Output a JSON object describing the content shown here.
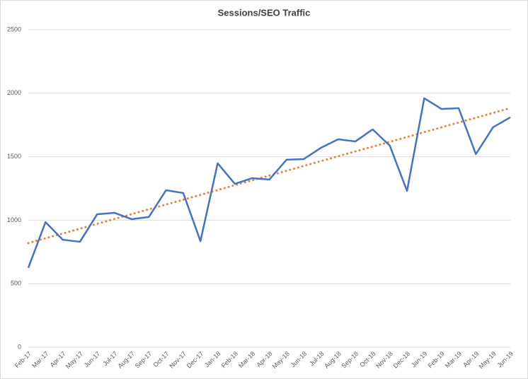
{
  "chart_data": {
    "type": "line",
    "title": "Sessions/SEO Traffic",
    "categories": [
      "Feb-17",
      "Mar-17",
      "Apr-17",
      "May-17",
      "Jun-17",
      "Jul-17",
      "Aug-17",
      "Sep-17",
      "Oct-17",
      "Nov-17",
      "Dec-17",
      "Jan-18",
      "Feb-18",
      "Mar-18",
      "Apr-18",
      "May-18",
      "Jun-18",
      "Jul-18",
      "Aug-18",
      "Sep-18",
      "Oct-18",
      "Nov-18",
      "Dec-18",
      "Jan-19",
      "Feb-19",
      "Mar-19",
      "Apr-19",
      "May-19",
      "Jun-19"
    ],
    "values": [
      625,
      985,
      846,
      830,
      1047,
      1058,
      1008,
      1025,
      1236,
      1214,
      835,
      1448,
      1286,
      1331,
      1320,
      1476,
      1481,
      1570,
      1637,
      1620,
      1715,
      1587,
      1230,
      1960,
      1876,
      1882,
      1520,
      1732,
      1810
    ],
    "color": "#4472c4",
    "trendline": true,
    "trendline_color": "#ed7d31",
    "ylim": [
      0,
      2500
    ],
    "yticks": [
      0,
      500,
      1000,
      1500,
      2000,
      2500
    ],
    "grid": true
  }
}
